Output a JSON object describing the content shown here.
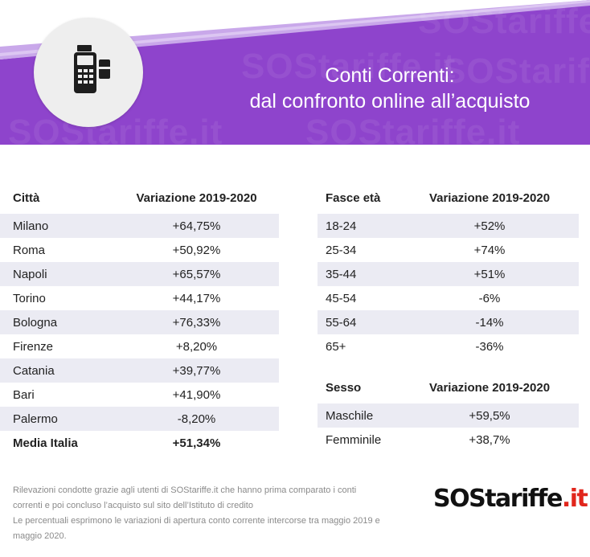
{
  "header": {
    "title_line1": "Conti Correnti:",
    "title_line2": "dal confronto online all’acquisto",
    "watermark": "SOStariffe.it",
    "icon": "pos-terminal-icon"
  },
  "cities_table": {
    "col1": "Città",
    "col2": "Variazione 2019-2020",
    "rows": [
      {
        "label": "Milano",
        "value": "+64,75%"
      },
      {
        "label": "Roma",
        "value": "+50,92%"
      },
      {
        "label": "Napoli",
        "value": "+65,57%"
      },
      {
        "label": "Torino",
        "value": "+44,17%"
      },
      {
        "label": "Bologna",
        "value": "+76,33%"
      },
      {
        "label": "Firenze",
        "value": "+8,20%"
      },
      {
        "label": "Catania",
        "value": "+39,77%"
      },
      {
        "label": "Bari",
        "value": "+41,90%"
      },
      {
        "label": "Palermo",
        "value": "-8,20%"
      },
      {
        "label": "Media Italia",
        "value": "+51,34%"
      }
    ]
  },
  "age_table": {
    "col1": "Fasce età",
    "col2": "Variazione 2019-2020",
    "rows": [
      {
        "label": "18-24",
        "value": "+52%"
      },
      {
        "label": "25-34",
        "value": "+74%"
      },
      {
        "label": "35-44",
        "value": "+51%"
      },
      {
        "label": "45-54",
        "value": "-6%"
      },
      {
        "label": "55-64",
        "value": "-14%"
      },
      {
        "label": "65+",
        "value": "-36%"
      }
    ]
  },
  "sex_table": {
    "col1": "Sesso",
    "col2": "Variazione 2019-2020",
    "rows": [
      {
        "label": "Maschile",
        "value": "+59,5%"
      },
      {
        "label": "Femminile",
        "value": "+38,7%"
      }
    ]
  },
  "footnote": {
    "line1": "Rilevazioni condotte grazie agli utenti di SOStariffe.it che hanno prima comparato i conti",
    "line2": "correnti e poi concluso l’acquisto sul sito dell’Istituto di credito",
    "line3": "Le percentuali esprimono le variazioni di apertura conto corrente intercorse tra maggio 2019 e",
    "line4": "maggio 2020."
  },
  "logo": {
    "brand": "SOStariffe",
    "suffix": ".it"
  },
  "colors": {
    "purple": "#8e44cc",
    "light_purple": "#c9a8ea",
    "row_shade": "#ebebf3",
    "logo_red": "#e1261c"
  }
}
